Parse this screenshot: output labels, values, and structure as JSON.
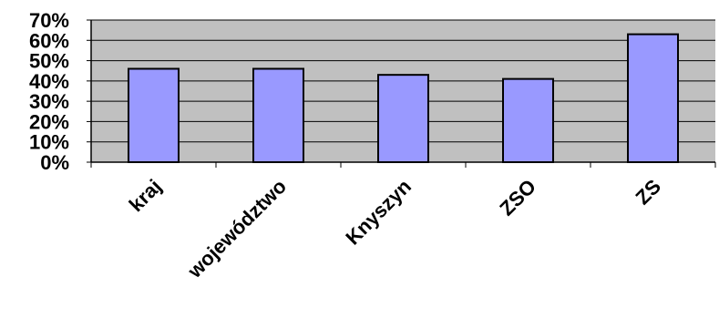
{
  "chart_data": {
    "type": "bar",
    "title": "",
    "xlabel": "",
    "ylabel": "",
    "categories": [
      "kraj",
      "województwo",
      "Knyszyn",
      "ZSO",
      "ZS"
    ],
    "values": [
      46,
      46,
      43,
      41,
      63
    ],
    "ylim": [
      0,
      70
    ],
    "yticks": [
      0,
      10,
      20,
      30,
      40,
      50,
      60,
      70
    ],
    "ytick_labels": [
      "0%",
      "10%",
      "20%",
      "30%",
      "40%",
      "50%",
      "60%",
      "70%"
    ],
    "grid": true,
    "legend": "none",
    "colors": {
      "bar_fill": "#9999ff",
      "plot_background": "#c0c0c0",
      "gridline": "#000000",
      "axis": "#000000"
    }
  }
}
